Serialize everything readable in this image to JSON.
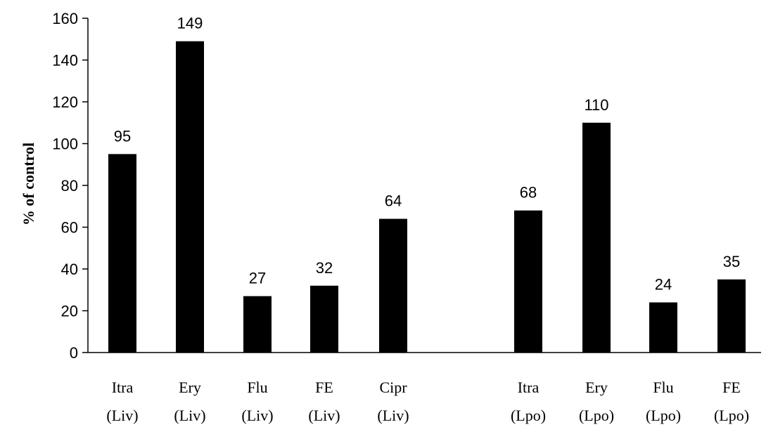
{
  "chart_data": {
    "type": "bar",
    "categories": [
      [
        "Itra",
        "(Liv)"
      ],
      [
        "Ery",
        "(Liv)"
      ],
      [
        "Flu",
        "(Liv)"
      ],
      [
        "FE",
        "(Liv)"
      ],
      [
        "Cipr",
        "(Liv)"
      ],
      [
        "Itra",
        "(Lpo)"
      ],
      [
        "Ery",
        "(Lpo)"
      ],
      [
        "Flu",
        "(Lpo)"
      ],
      [
        "FE",
        "(Lpo)"
      ]
    ],
    "values": [
      95,
      149,
      27,
      32,
      64,
      68,
      110,
      24,
      35
    ],
    "data_labels": [
      "95",
      "149",
      "27",
      "32",
      "64",
      "68",
      "110",
      "24",
      "35"
    ],
    "title": "",
    "xlabel": "",
    "ylabel": "% of control",
    "ylim": [
      0,
      160
    ],
    "yticks": [
      0,
      20,
      40,
      60,
      80,
      100,
      120,
      140,
      160
    ],
    "grid": false,
    "legend": "none",
    "bar_color": "#000000"
  }
}
